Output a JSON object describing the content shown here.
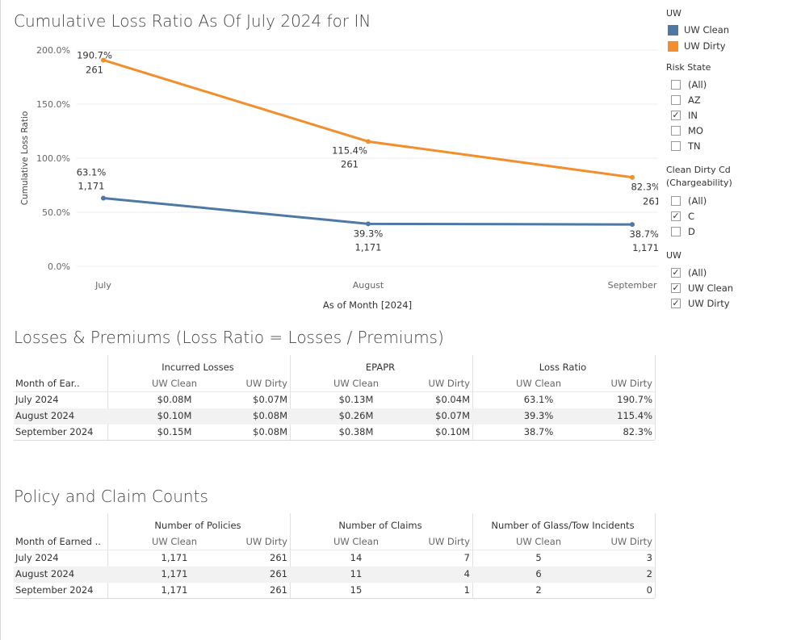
{
  "chart": {
    "title": "Cumulative Loss Ratio As Of July 2024 for IN",
    "y_axis_label": "Cumulative Loss Ratio",
    "x_axis_label": "As of Month [2024]",
    "y_ticks": [
      "200.0%",
      "150.0%",
      "100.0%",
      "50.0%",
      "0.0%"
    ],
    "x_ticks": [
      "July",
      "August",
      "September"
    ],
    "point_labels": {
      "dirty": [
        {
          "pct": "190.7%",
          "count": "261"
        },
        {
          "pct": "115.4%",
          "count": "261"
        },
        {
          "pct": "82.3%",
          "count": "261"
        }
      ],
      "clean": [
        {
          "pct": "63.1%",
          "count": "1,171"
        },
        {
          "pct": "39.3%",
          "count": "1,171"
        },
        {
          "pct": "38.7%",
          "count": "1,171"
        }
      ]
    }
  },
  "chart_data": {
    "type": "line",
    "x": [
      "July",
      "August",
      "September"
    ],
    "series": [
      {
        "name": "UW Clean",
        "values": [
          63.1,
          39.3,
          38.7
        ],
        "counts": [
          1171,
          1171,
          1171
        ],
        "color": "#4e79a7"
      },
      {
        "name": "UW Dirty",
        "values": [
          190.7,
          115.4,
          82.3
        ],
        "counts": [
          261,
          261,
          261
        ],
        "color": "#f28e2b"
      }
    ],
    "title": "Cumulative Loss Ratio As Of July 2024 for IN",
    "xlabel": "As of Month [2024]",
    "ylabel": "Cumulative Loss Ratio",
    "ylim": [
      0,
      200
    ],
    "grid": true
  },
  "table1": {
    "title": "Losses & Premiums (Loss Ratio = Losses / Premiums)",
    "row_header": "Month of Ear..",
    "groups": [
      "Incurred Losses",
      "EPAPR",
      "Loss Ratio"
    ],
    "subheaders": [
      "UW Clean",
      "UW Dirty"
    ],
    "rows": [
      {
        "month": "July 2024",
        "values": [
          "$0.08M",
          "$0.07M",
          "$0.13M",
          "$0.04M",
          "63.1%",
          "190.7%"
        ]
      },
      {
        "month": "August 2024",
        "values": [
          "$0.10M",
          "$0.08M",
          "$0.26M",
          "$0.07M",
          "39.3%",
          "115.4%"
        ]
      },
      {
        "month": "September 2024",
        "values": [
          "$0.15M",
          "$0.08M",
          "$0.38M",
          "$0.10M",
          "38.7%",
          "82.3%"
        ]
      }
    ]
  },
  "table2": {
    "title": "Policy and Claim Counts",
    "row_header": "Month of Earned ..",
    "groups": [
      "Number of Policies",
      "Number of Claims",
      "Number of Glass/Tow Incidents"
    ],
    "subheaders": [
      "UW Clean",
      "UW Dirty"
    ],
    "rows": [
      {
        "month": "July 2024",
        "values": [
          "1,171",
          "261",
          "14",
          "7",
          "5",
          "3"
        ]
      },
      {
        "month": "August 2024",
        "values": [
          "1,171",
          "261",
          "11",
          "4",
          "6",
          "2"
        ]
      },
      {
        "month": "September 2024",
        "values": [
          "1,171",
          "261",
          "15",
          "1",
          "2",
          "0"
        ]
      }
    ]
  },
  "legend": {
    "title": "UW",
    "items": [
      {
        "label": "UW Clean",
        "color": "#4e79a7"
      },
      {
        "label": "UW Dirty",
        "color": "#f28e2b"
      }
    ]
  },
  "filters": {
    "risk_state": {
      "title": "Risk State",
      "options": [
        {
          "label": "(All)",
          "checked": false
        },
        {
          "label": "AZ",
          "checked": false
        },
        {
          "label": "IN",
          "checked": true
        },
        {
          "label": "MO",
          "checked": false
        },
        {
          "label": "TN",
          "checked": false
        }
      ]
    },
    "clean_dirty": {
      "title_line1": "Clean Dirty Cd",
      "title_line2": "(Chargeability)",
      "options": [
        {
          "label": "(All)",
          "checked": false
        },
        {
          "label": "C",
          "checked": true
        },
        {
          "label": "D",
          "checked": false
        }
      ]
    },
    "uw": {
      "title": "UW",
      "options": [
        {
          "label": "(All)",
          "checked": true
        },
        {
          "label": "UW Clean",
          "checked": true
        },
        {
          "label": "UW Dirty",
          "checked": true
        }
      ]
    }
  }
}
